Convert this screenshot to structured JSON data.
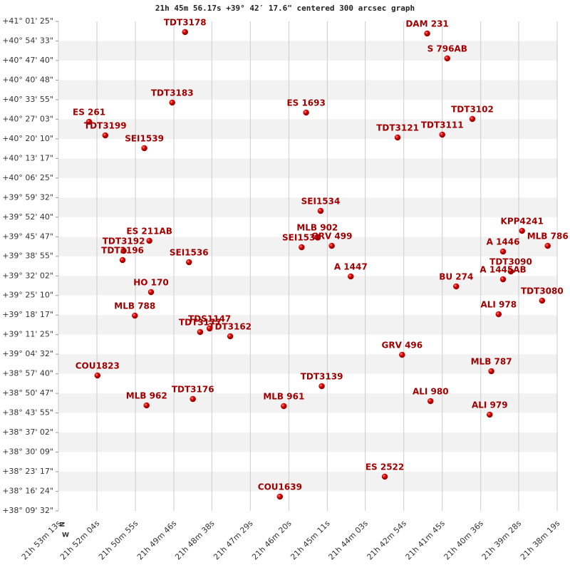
{
  "chart_data": {
    "type": "scatter",
    "title": "21h 45m 56.17s +39° 42′ 17.6\" centered 300 arcsec graph",
    "compass": [
      "N",
      "W"
    ],
    "xlim": [
      78793,
      77899
    ],
    "ylim": [
      137372,
      147685
    ],
    "xticks": [
      {
        "value": 78793,
        "label": "21h 53m 13s"
      },
      {
        "value": 78724,
        "label": "21h 52m 04s"
      },
      {
        "value": 78655,
        "label": "21h 50m 55s"
      },
      {
        "value": 78586,
        "label": "21h 49m 46s"
      },
      {
        "value": 78518,
        "label": "21h 48m 38s"
      },
      {
        "value": 78449,
        "label": "21h 47m 29s"
      },
      {
        "value": 78380,
        "label": "21h 46m 20s"
      },
      {
        "value": 78311,
        "label": "21h 45m 11s"
      },
      {
        "value": 78243,
        "label": "21h 44m 03s"
      },
      {
        "value": 78174,
        "label": "21h 42m 54s"
      },
      {
        "value": 78105,
        "label": "21h 41m 45s"
      },
      {
        "value": 78036,
        "label": "21h 40m 36s"
      },
      {
        "value": 77968,
        "label": "21h 39m 28s"
      },
      {
        "value": 77899,
        "label": "21h 38m 19s"
      }
    ],
    "yticks": [
      {
        "value": 147685,
        "label": "+41° 01' 25\""
      },
      {
        "value": 147273,
        "label": "+40° 54' 33\""
      },
      {
        "value": 146860,
        "label": "+40° 47' 40\""
      },
      {
        "value": 146448,
        "label": "+40° 40' 48\""
      },
      {
        "value": 146035,
        "label": "+40° 33' 55\""
      },
      {
        "value": 145623,
        "label": "+40° 27' 03\""
      },
      {
        "value": 145210,
        "label": "+40° 20' 10\""
      },
      {
        "value": 144797,
        "label": "+40° 13' 17\""
      },
      {
        "value": 144385,
        "label": "+40° 06' 25\""
      },
      {
        "value": 143972,
        "label": "+39° 59' 32\""
      },
      {
        "value": 143560,
        "label": "+39° 52' 40\""
      },
      {
        "value": 143147,
        "label": "+39° 45' 47\""
      },
      {
        "value": 142735,
        "label": "+39° 38' 55\""
      },
      {
        "value": 142322,
        "label": "+39° 32' 02\""
      },
      {
        "value": 141910,
        "label": "+39° 25' 10\""
      },
      {
        "value": 141497,
        "label": "+39° 18' 17\""
      },
      {
        "value": 141085,
        "label": "+39° 11' 25\""
      },
      {
        "value": 140672,
        "label": "+39° 04' 32\""
      },
      {
        "value": 140260,
        "label": "+38° 57' 40\""
      },
      {
        "value": 139847,
        "label": "+38° 50' 47\""
      },
      {
        "value": 139435,
        "label": "+38° 43' 55\""
      },
      {
        "value": 139022,
        "label": "+38° 37' 02\""
      },
      {
        "value": 138609,
        "label": "+38° 30' 09\""
      },
      {
        "value": 138197,
        "label": "+38° 23' 17\""
      },
      {
        "value": 137784,
        "label": "+38° 16' 24\""
      },
      {
        "value": 137372,
        "label": "+38° 09' 32\""
      }
    ],
    "grid": true,
    "stripe_color": "#f2f2f2",
    "grid_color": "#cccccc",
    "series": [
      {
        "color": "#cc0000",
        "label_color": "#a00000",
        "labels": [
          "TDT3178",
          "DAM 231",
          "S  796AB",
          "TDT3183",
          "ES 1693",
          "ES  261",
          "TDT3199",
          "TDT3102",
          "TDT3121",
          "TDT3111",
          "SEI1539",
          "SEI1534",
          "KPP4241",
          "MLB 786",
          "ES  211AB",
          "TDT3192",
          "TDT3196",
          "MLB 902",
          "SEI1535",
          "GRV 499",
          "A  1446",
          "TDT3090",
          "A  1445AB",
          "SEI1536",
          "A  1447",
          "BU  274",
          "HO  170",
          "TDT3080",
          "MLB 788",
          "ALI 978",
          "TDS1147",
          "TDT3177",
          "TDT3162",
          "GRV 496",
          "COU1823",
          "MLB 787",
          "TDT3139",
          "MLB 962",
          "TDT3176",
          "MLB 961",
          "ALI 980",
          "ALI 979",
          "ES 2522",
          "COU1639"
        ],
        "x": [
          78566,
          78132,
          78096,
          78589,
          78349,
          78738,
          78709,
          78051,
          78185,
          78105,
          78639,
          78323,
          77962,
          77916,
          78630,
          78676,
          78678,
          78329,
          78357,
          78303,
          77996,
          77982,
          77996,
          78559,
          78269,
          78080,
          78627,
          77926,
          78656,
          78004,
          78522,
          78539,
          78485,
          78177,
          78723,
          78017,
          78321,
          78635,
          78552,
          78389,
          78126,
          78020,
          78208,
          78396
        ],
        "values": [
          147460,
          147430,
          146905,
          145974,
          145764,
          145569,
          145283,
          145629,
          145238,
          145298,
          145013,
          143692,
          143272,
          142956,
          143062,
          142851,
          142656,
          143137,
          142926,
          142956,
          142836,
          142416,
          142251,
          142611,
          142311,
          142101,
          141981,
          141801,
          141485,
          141515,
          141215,
          141140,
          141050,
          140660,
          140224,
          140314,
          139999,
          139594,
          139729,
          139579,
          139684,
          139399,
          138093,
          137672
        ]
      }
    ]
  }
}
